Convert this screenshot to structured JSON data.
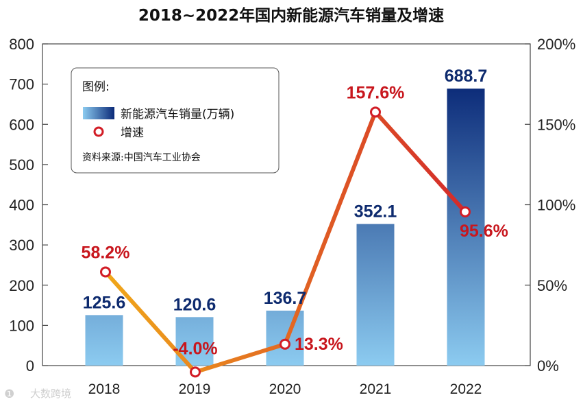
{
  "chart_data": {
    "type": "bar+line",
    "title": "2018~2022年国内新能源汽车销量及增速",
    "categories": [
      "2018",
      "2019",
      "2020",
      "2021",
      "2022"
    ],
    "series": [
      {
        "name": "新能源汽车销量(万辆)",
        "type": "bar",
        "axis": "left",
        "values": [
          125.6,
          120.6,
          136.7,
          352.1,
          688.7
        ],
        "labels": [
          "125.6",
          "120.6",
          "136.7",
          "352.1",
          "688.7"
        ]
      },
      {
        "name": "增速",
        "type": "line",
        "axis": "right",
        "values": [
          58.2,
          -4.0,
          13.3,
          157.6,
          95.6
        ],
        "labels": [
          "58.2%",
          "-4.0%",
          "13.3%",
          "157.6%",
          "95.6%"
        ]
      }
    ],
    "y_left": {
      "min": 0,
      "max": 800,
      "ticks": [
        "0",
        "100",
        "200",
        "300",
        "400",
        "500",
        "600",
        "700",
        "800"
      ]
    },
    "y_right": {
      "min": 0,
      "max": 200,
      "ticks": [
        "0%",
        "50%",
        "100%",
        "150%",
        "200%"
      ]
    },
    "legend": {
      "position": "top-left",
      "heading": "图例:",
      "bar_label": "新能源汽车销量(万辆)",
      "line_label": "增速",
      "source": "资料来源:中国汽车工业协会"
    },
    "colors": {
      "bar_top": "#0b2a78",
      "bar_bottom": "#8ccbf0",
      "line_start": "#f0a81a",
      "line_end": "#d42a2a",
      "marker_ring": "#d21d26",
      "value_label": "#0d2a6e",
      "growth_label": "#c8161d"
    }
  },
  "watermark": "大数跨境"
}
